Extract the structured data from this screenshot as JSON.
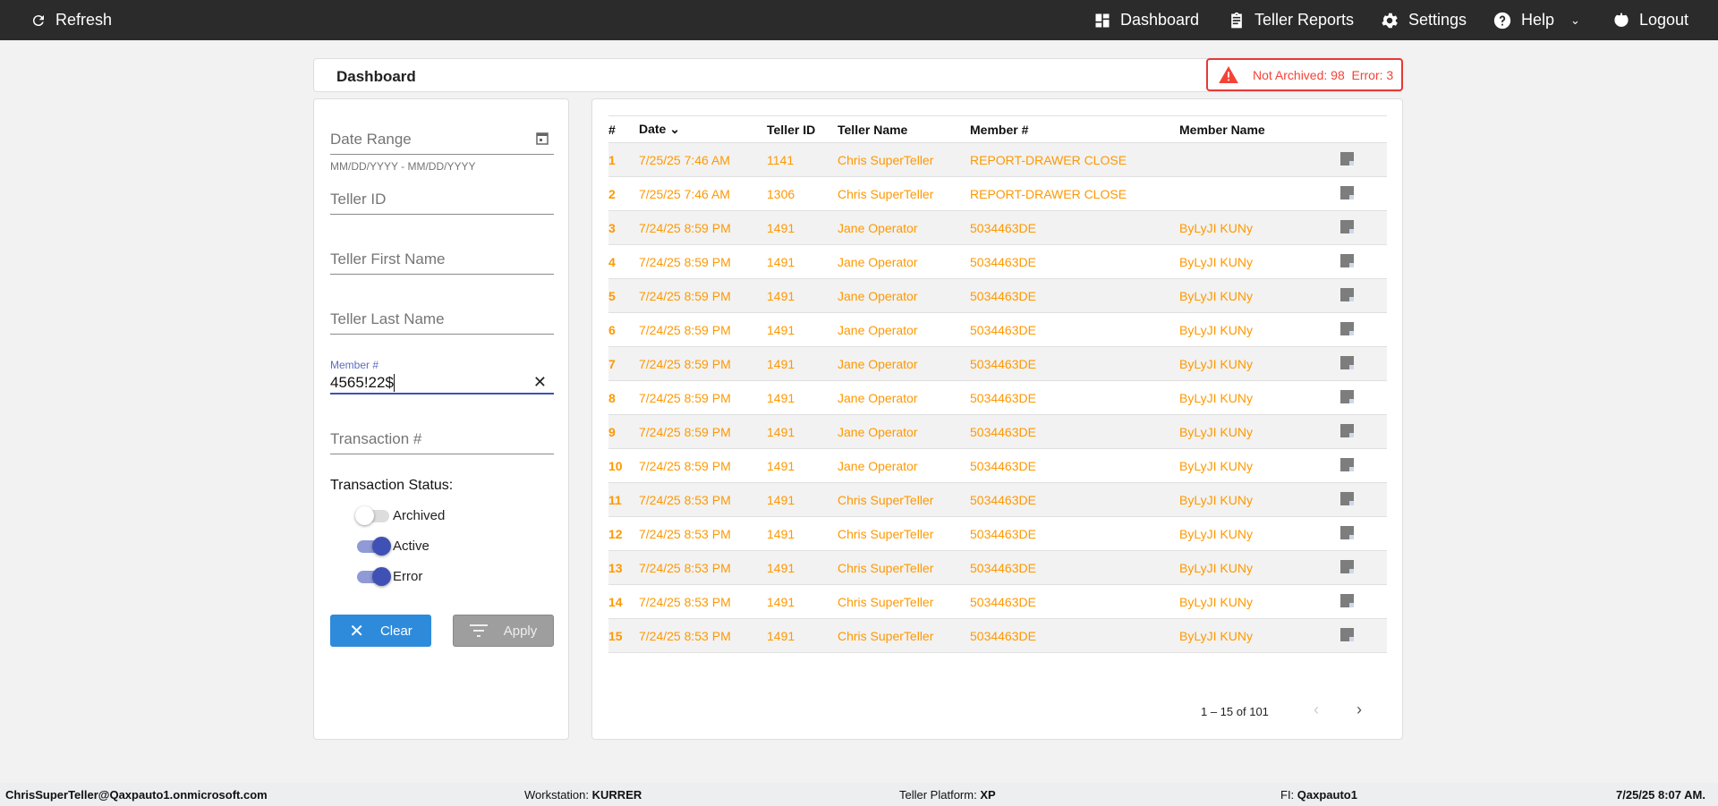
{
  "topbar": {
    "refresh": "Refresh",
    "dashboard": "Dashboard",
    "teller_reports": "Teller Reports",
    "settings": "Settings",
    "help": "Help",
    "logout": "Logout"
  },
  "header": {
    "title": "Dashboard",
    "alert": "Not Archived: 98  Error: 3"
  },
  "filters": {
    "date_range": "Date Range",
    "date_hint": "MM/DD/YYYY - MM/DD/YYYY",
    "teller_id": "Teller ID",
    "first_name": "Teller First Name",
    "last_name": "Teller Last Name",
    "member_label": "Member #",
    "member_value": "4565!22$",
    "transaction": "Transaction #",
    "status_label": "Transaction Status:",
    "toggles": [
      {
        "label": "Archived",
        "on": false
      },
      {
        "label": "Active",
        "on": true
      },
      {
        "label": "Error",
        "on": true
      }
    ],
    "clear": "Clear",
    "apply": "Apply"
  },
  "table": {
    "columns": [
      "#",
      "Date",
      "Teller ID",
      "Teller Name",
      "Member #",
      "Member Name"
    ],
    "rows": [
      [
        "1",
        "7/25/25 7:46 AM",
        "1141",
        "Chris SuperTeller",
        "REPORT-DRAWER CLOSE",
        ""
      ],
      [
        "2",
        "7/25/25 7:46 AM",
        "1306",
        "Chris SuperTeller",
        "REPORT-DRAWER CLOSE",
        ""
      ],
      [
        "3",
        "7/24/25 8:59 PM",
        "1491",
        "Jane Operator",
        "5034463DE",
        "ByLyJI KUNy"
      ],
      [
        "4",
        "7/24/25 8:59 PM",
        "1491",
        "Jane Operator",
        "5034463DE",
        "ByLyJI KUNy"
      ],
      [
        "5",
        "7/24/25 8:59 PM",
        "1491",
        "Jane Operator",
        "5034463DE",
        "ByLyJI KUNy"
      ],
      [
        "6",
        "7/24/25 8:59 PM",
        "1491",
        "Jane Operator",
        "5034463DE",
        "ByLyJI KUNy"
      ],
      [
        "7",
        "7/24/25 8:59 PM",
        "1491",
        "Jane Operator",
        "5034463DE",
        "ByLyJI KUNy"
      ],
      [
        "8",
        "7/24/25 8:59 PM",
        "1491",
        "Jane Operator",
        "5034463DE",
        "ByLyJI KUNy"
      ],
      [
        "9",
        "7/24/25 8:59 PM",
        "1491",
        "Jane Operator",
        "5034463DE",
        "ByLyJI KUNy"
      ],
      [
        "10",
        "7/24/25 8:59 PM",
        "1491",
        "Jane Operator",
        "5034463DE",
        "ByLyJI KUNy"
      ],
      [
        "11",
        "7/24/25 8:53 PM",
        "1491",
        "Chris SuperTeller",
        "5034463DE",
        "ByLyJI KUNy"
      ],
      [
        "12",
        "7/24/25 8:53 PM",
        "1491",
        "Chris SuperTeller",
        "5034463DE",
        "ByLyJI KUNy"
      ],
      [
        "13",
        "7/24/25 8:53 PM",
        "1491",
        "Chris SuperTeller",
        "5034463DE",
        "ByLyJI KUNy"
      ],
      [
        "14",
        "7/24/25 8:53 PM",
        "1491",
        "Chris SuperTeller",
        "5034463DE",
        "ByLyJI KUNy"
      ],
      [
        "15",
        "7/24/25 8:53 PM",
        "1491",
        "Chris SuperTeller",
        "5034463DE",
        "ByLyJI KUNy"
      ]
    ],
    "pagination": "1 – 15 of 101"
  },
  "footer": {
    "user": "ChrisSuperTeller@Qaxpauto1.onmicrosoft.com",
    "workstation_label": "Workstation:",
    "workstation": "KURRER",
    "platform_label": "Teller Platform:",
    "platform": "XP",
    "fi_label": "FI:",
    "fi": "Qaxpauto1",
    "datetime": "7/25/25 8:07 AM."
  },
  "colors": {
    "accent": "#3f51b5",
    "row_text": "#ff9800",
    "alert": "#f44336",
    "clear": "#2e8bdb",
    "apply": "#9e9e9e"
  }
}
